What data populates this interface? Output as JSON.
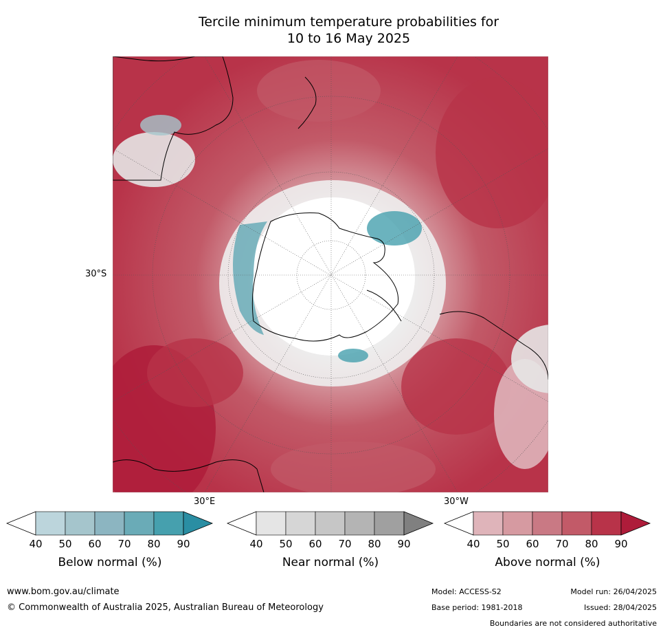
{
  "title": {
    "line1": "Tercile minimum temperature probabilities for",
    "line2": "10 to 16 May 2025"
  },
  "map": {
    "projection": "south polar stereographic",
    "lat_label": "30°S",
    "lon_labels": [
      "30°E",
      "30°W"
    ]
  },
  "colorbars": [
    {
      "label": "Below normal (%)",
      "ticks": [
        "40",
        "50",
        "60",
        "70",
        "80",
        "90"
      ],
      "colors": [
        "#ffffff",
        "#bcd5dc",
        "#a5c5cc",
        "#8cb5c1",
        "#6aabb7",
        "#46a0ae",
        "#2a8ea3"
      ]
    },
    {
      "label": "Near normal (%)",
      "ticks": [
        "40",
        "50",
        "60",
        "70",
        "80",
        "90"
      ],
      "colors": [
        "#ffffff",
        "#e5e5e5",
        "#d6d6d6",
        "#c6c6c6",
        "#b4b4b4",
        "#a0a0a0",
        "#808080"
      ]
    },
    {
      "label": "Above normal (%)",
      "ticks": [
        "40",
        "50",
        "60",
        "70",
        "80",
        "90"
      ],
      "colors": [
        "#ffffff",
        "#dfb4ba",
        "#d69aa1",
        "#c97984",
        "#c25a68",
        "#b83349",
        "#ae1c3a"
      ]
    }
  ],
  "footer": {
    "website": "www.bom.gov.au/climate",
    "copyright": "© Commonwealth of Australia 2025, Australian Bureau of Meteorology",
    "model": "Model: ACCESS-S2",
    "base_period": "Base period: 1981-2018",
    "model_run": "Model run: 26/04/2025",
    "issued": "Issued: 28/04/2025",
    "disclaimer": "Boundaries are not considered authoritative"
  }
}
